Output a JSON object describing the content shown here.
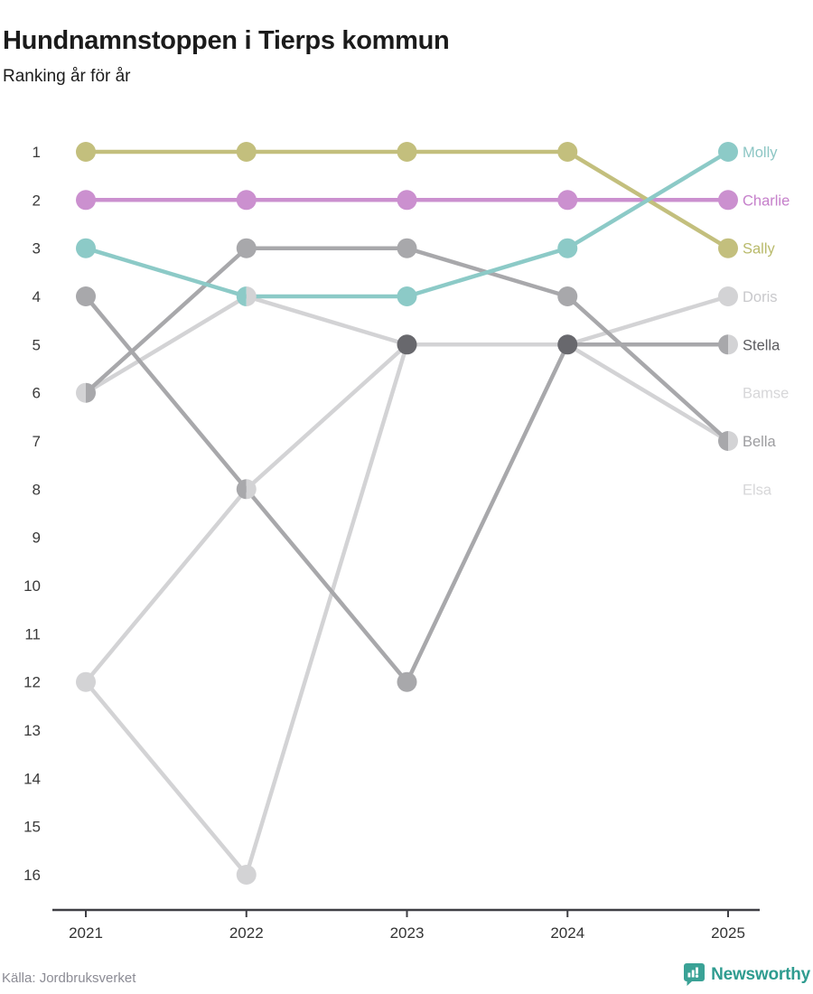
{
  "header": {
    "title": "Hundnamnstoppen i Tierps kommun",
    "subtitle": "Ranking år för år"
  },
  "footer": {
    "source": "Källa: Jordbruksverket",
    "brand": "Newsworthy"
  },
  "chart_data": {
    "type": "line",
    "variant": "bump-ranking",
    "title": "Hundnamnstoppen i Tierps kommun",
    "subtitle": "Ranking år för år",
    "x": [
      2021,
      2022,
      2023,
      2024,
      2025
    ],
    "y_ticks": [
      1,
      2,
      3,
      4,
      5,
      6,
      7,
      8,
      9,
      10,
      11,
      12,
      13,
      14,
      15,
      16
    ],
    "y_range": [
      1,
      16
    ],
    "y_inverted": true,
    "grid": false,
    "legend_position": "right-inline-labels",
    "tie_dot_color": "#68686d",
    "axis_color": "#3f3f44",
    "tick_label_color": "#3a3a3a",
    "series": [
      {
        "name": "Molly",
        "values": [
          3,
          4,
          4,
          3,
          1
        ],
        "color": "#8ccac7",
        "label_color": "#8cc6c4",
        "label_slot": 1
      },
      {
        "name": "Charlie",
        "values": [
          2,
          2,
          2,
          2,
          2
        ],
        "color": "#cb90cf",
        "label_color": "#c681cb",
        "label_slot": 2
      },
      {
        "name": "Sally",
        "values": [
          1,
          1,
          1,
          1,
          3
        ],
        "color": "#c3bf7d",
        "label_color": "#b9ba6b",
        "label_slot": 3
      },
      {
        "name": "Doris",
        "values": [
          6,
          4,
          5,
          5,
          4
        ],
        "color": "#d3d3d5",
        "label_color": "#c9c9cc",
        "label_slot": 4
      },
      {
        "name": "Stella",
        "values": [
          4,
          8,
          12,
          5,
          5
        ],
        "color": "#a8a8ab",
        "label_color": "#5b5b5f",
        "label_slot": 5
      },
      {
        "name": "Bamse",
        "values": [
          12,
          16,
          5,
          5,
          5
        ],
        "color": "#d3d3d5",
        "label_color": "#d7d7d9",
        "label_slot": 6
      },
      {
        "name": "Bella",
        "values": [
          6,
          3,
          3,
          4,
          7
        ],
        "color": "#a8a8ab",
        "label_color": "#9d9da0",
        "label_slot": 7
      },
      {
        "name": "Elsa",
        "values": [
          12,
          8,
          5,
          5,
          7
        ],
        "color": "#d3d3d5",
        "label_color": "#d7d7d9",
        "label_slot": 8
      }
    ]
  }
}
